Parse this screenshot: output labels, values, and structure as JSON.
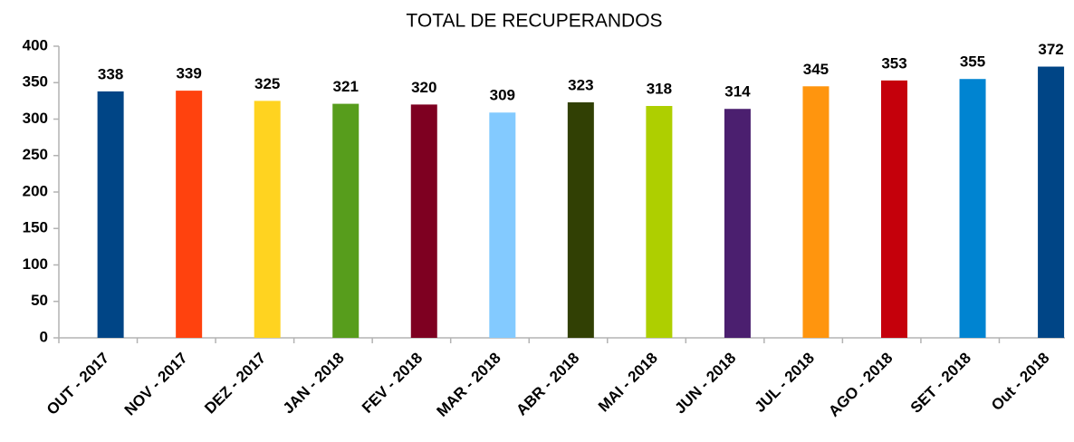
{
  "chart_data": {
    "type": "bar",
    "title": "TOTAL DE RECUPERANDOS",
    "categories": [
      "OUT - 2017",
      "NOV - 2017",
      "DEZ - 2017",
      "JAN - 2018",
      "FEV - 2018",
      "MAR - 2018",
      "ABR - 2018",
      "MAI - 2018",
      "JUN - 2018",
      "JUL - 2018",
      "AGO - 2018",
      "SET - 2018",
      "Out - 2018"
    ],
    "values": [
      338,
      339,
      325,
      321,
      320,
      309,
      323,
      318,
      314,
      345,
      353,
      355,
      372
    ],
    "colors": [
      "#004586",
      "#ff420e",
      "#ffd320",
      "#579d1c",
      "#7e0021",
      "#83caff",
      "#314004",
      "#aecf00",
      "#4b1f6f",
      "#ff950e",
      "#c5000b",
      "#0084d1",
      "#004586"
    ],
    "ylim": [
      0,
      400
    ],
    "yticks": [
      0,
      50,
      100,
      150,
      200,
      250,
      300,
      350,
      400
    ],
    "grid": false
  }
}
